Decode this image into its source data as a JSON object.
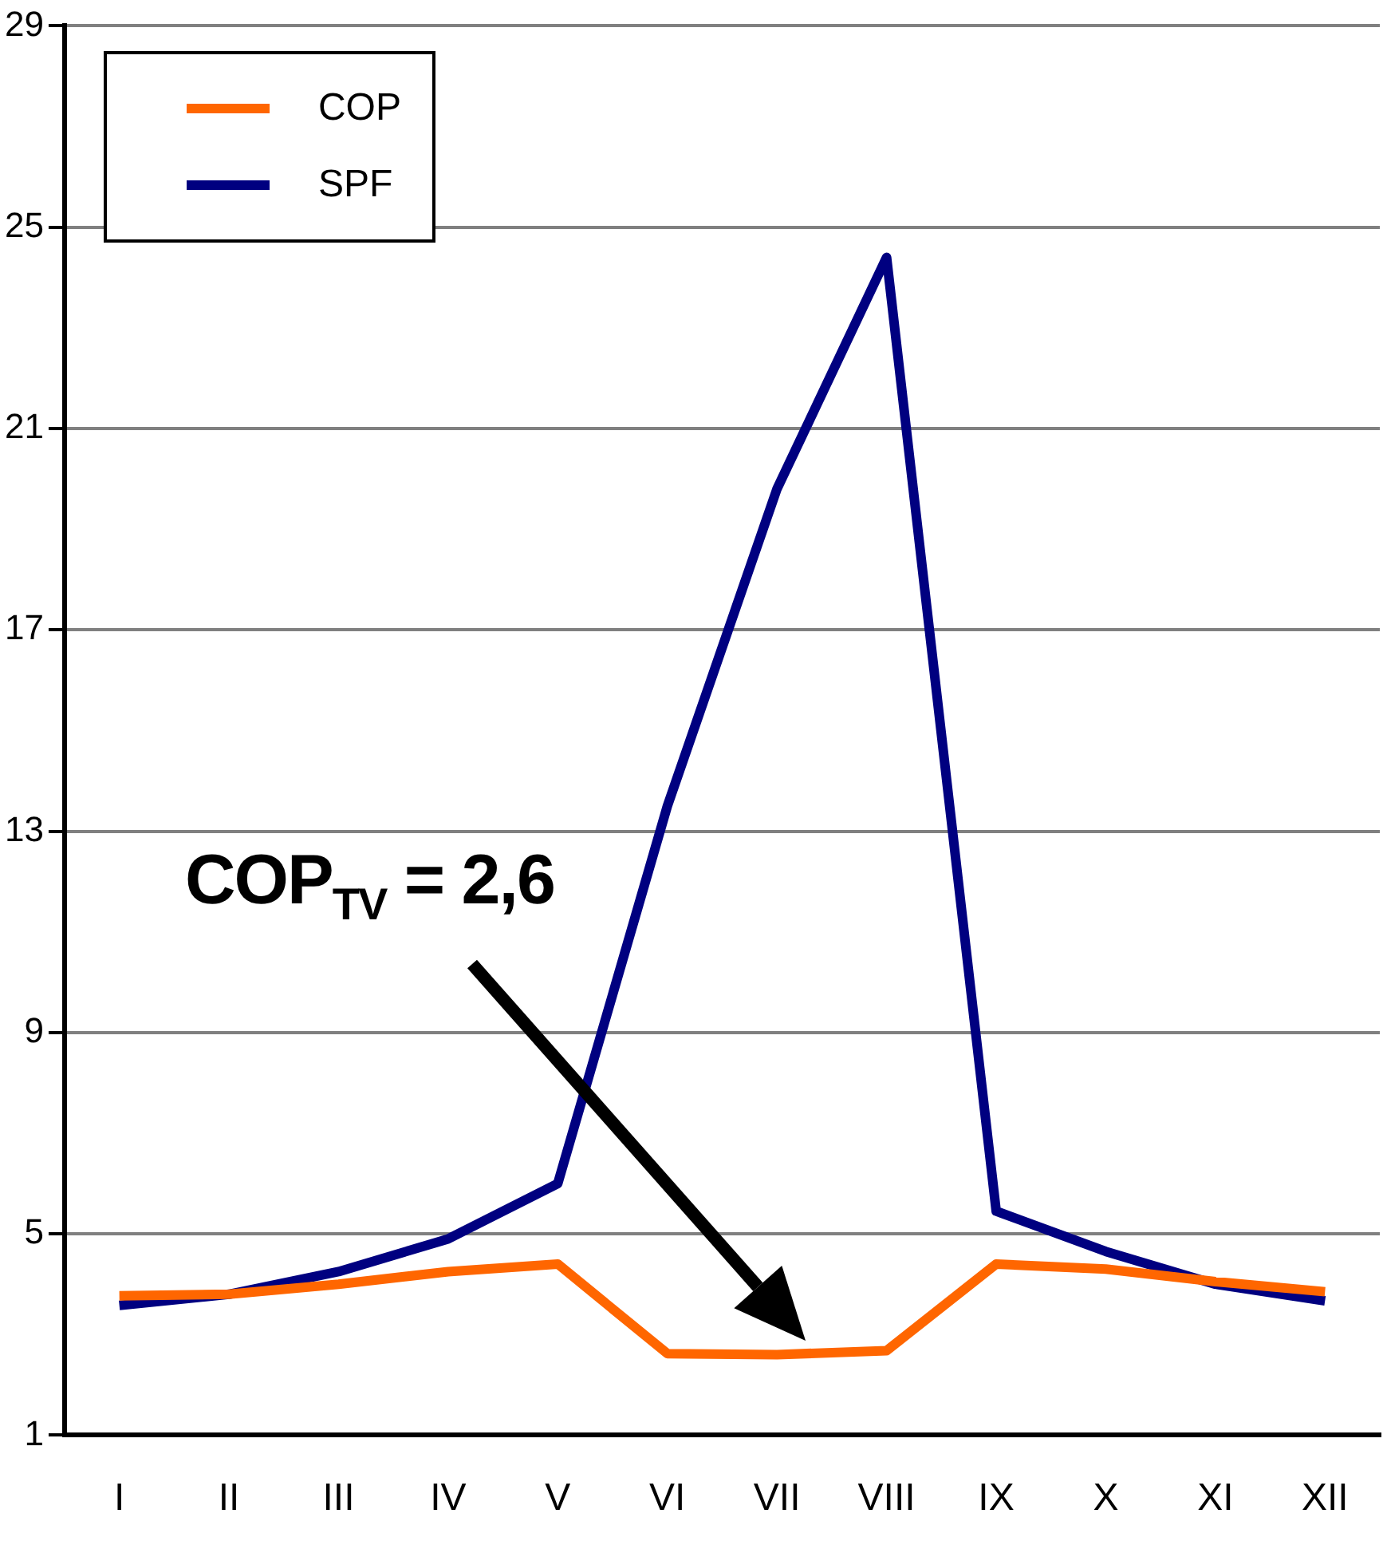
{
  "chart_data": {
    "type": "line",
    "categories": [
      "I",
      "II",
      "III",
      "IV",
      "V",
      "VI",
      "VII",
      "VIII",
      "IX",
      "X",
      "XI",
      "XII"
    ],
    "series": [
      {
        "name": "COP",
        "color": "#ff6600",
        "values": [
          3.77,
          3.8,
          4.0,
          4.25,
          4.4,
          2.62,
          2.6,
          2.68,
          4.4,
          4.3,
          4.05,
          3.85
        ]
      },
      {
        "name": "SPF",
        "color": "#000080",
        "values": [
          3.58,
          3.8,
          4.25,
          4.9,
          6.0,
          13.5,
          19.8,
          24.4,
          5.45,
          4.65,
          4.0,
          3.67
        ]
      }
    ],
    "ylim": [
      1,
      29
    ],
    "yticks": [
      1,
      5,
      9,
      13,
      17,
      21,
      25,
      29
    ],
    "grid": "y",
    "legend": "top left",
    "marker": "none",
    "line_style": "solid",
    "annotations": [
      "COP$_{TV}$ = 2,6"
    ]
  }
}
